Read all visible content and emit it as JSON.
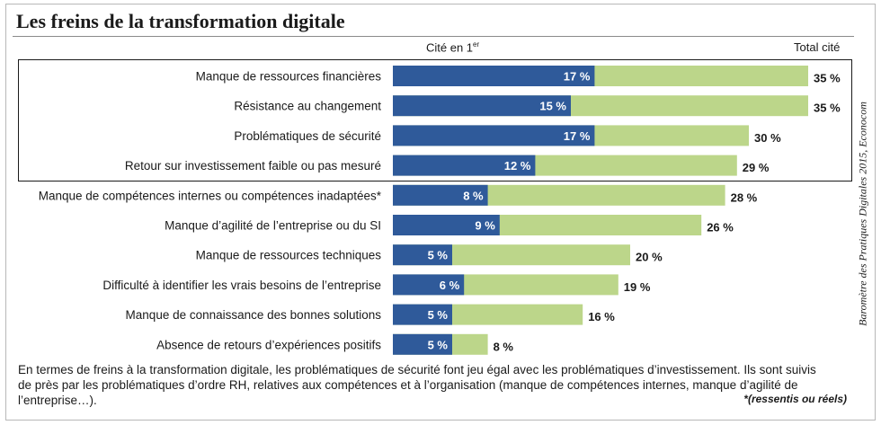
{
  "title": "Les freins de la transformation digitale",
  "header": {
    "first_label_main": "Cité en 1",
    "first_label_sup": "er",
    "total_label": "Total cité"
  },
  "chart_data": {
    "type": "bar",
    "orientation": "horizontal",
    "stacked": "overlay",
    "categories": [
      "Manque de ressources financières",
      "Résistance au changement",
      "Problématiques de sécurité",
      "Retour sur investissement faible ou pas mesuré",
      "Manque de compétences internes ou compétences inadaptées*",
      "Manque d’agilité de l’entreprise ou du SI",
      "Manque de ressources techniques",
      "Difficulté à identifier les vrais besoins de l’entreprise",
      "Manque de connaissance des bonnes solutions",
      "Absence de retours d’expériences positifs"
    ],
    "series": [
      {
        "name": "Cité en 1er",
        "values": [
          17,
          15,
          17,
          12,
          8,
          9,
          5,
          6,
          5,
          5
        ],
        "color": "#2f5a9a"
      },
      {
        "name": "Total cité",
        "values": [
          35,
          35,
          30,
          29,
          28,
          26,
          20,
          19,
          16,
          8
        ],
        "color": "#bcd68a"
      }
    ],
    "value_labels_first": [
      "17 %",
      "15 %",
      "17 %",
      "12 %",
      "8 %",
      "9 %",
      "5 %",
      "6 %",
      "5 %",
      "5 %"
    ],
    "value_labels_total": [
      "35 %",
      "35 %",
      "30 %",
      "29 %",
      "28 %",
      "26 %",
      "20 %",
      "19 %",
      "16 %",
      "8 %"
    ],
    "highlighted_rows": [
      0,
      1,
      2,
      3
    ],
    "xlim": [
      0,
      35
    ]
  },
  "summary": "En termes de freins à la transformation digitale, les problématiques de sécurité font jeu égal avec les problématiques d’investissement. Ils sont suivis de près par les problématiques d’ordre RH, relatives aux compétences et à l’organisation (manque de compétences internes, manque d’agilité de l’entreprise…).",
  "footnote": "*(ressentis ou réels)",
  "source": "Baromètre des Pratiques Digitales 2015, Econocom"
}
